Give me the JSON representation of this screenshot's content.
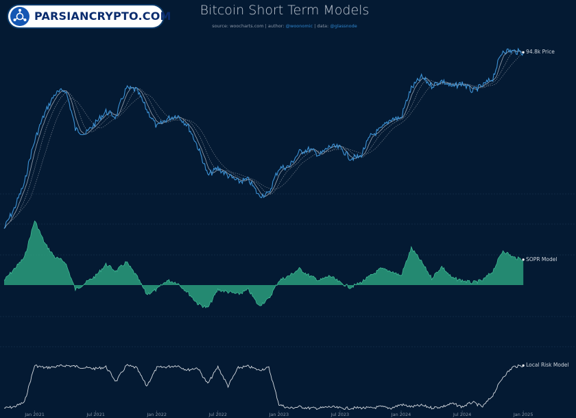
{
  "header": {
    "title": "Bitcoin Short Term Models",
    "source_prefix": "source: woocharts.com | author: ",
    "author": "@woonomic",
    "data_prefix": " | data: ",
    "data_source": "@glassnode"
  },
  "logo": {
    "text": "PARSIANCRYPTO.COM"
  },
  "chart_data": {
    "type": "line",
    "title": "Bitcoin Short Term Models",
    "x_ticks": [
      "Jan 2021",
      "Jul 2021",
      "Jan 2022",
      "Jul 2022",
      "Jan 2023",
      "Jul 2023",
      "Jan 2024",
      "Jul 2024",
      "Jan 2025"
    ],
    "x_range": [
      "2020-10",
      "2025-02"
    ],
    "grid": "horizontal",
    "legend": "inline-right",
    "series": [
      {
        "name": "Price",
        "label": "94.8k Price",
        "color": "#3d94d8",
        "panel": "top",
        "scale": "log",
        "x": [
          "2020-10",
          "2020-11",
          "2020-12",
          "2021-01",
          "2021-02",
          "2021-03",
          "2021-04",
          "2021-05",
          "2021-06",
          "2021-07",
          "2021-08",
          "2021-09",
          "2021-10",
          "2021-11",
          "2021-12",
          "2022-01",
          "2022-02",
          "2022-03",
          "2022-04",
          "2022-05",
          "2022-06",
          "2022-07",
          "2022-08",
          "2022-09",
          "2022-10",
          "2022-11",
          "2022-12",
          "2023-01",
          "2023-02",
          "2023-03",
          "2023-04",
          "2023-05",
          "2023-06",
          "2023-07",
          "2023-08",
          "2023-09",
          "2023-10",
          "2023-11",
          "2023-12",
          "2024-01",
          "2024-02",
          "2024-03",
          "2024-04",
          "2024-05",
          "2024-06",
          "2024-07",
          "2024-08",
          "2024-09",
          "2024-10",
          "2024-11",
          "2024-12",
          "2025-01"
        ],
        "values": [
          11,
          14,
          19,
          32,
          45,
          57,
          60,
          37,
          35,
          40,
          46,
          43,
          61,
          60,
          47,
          38,
          42,
          44,
          39,
          30,
          21,
          23,
          21,
          19.5,
          20,
          16.5,
          16.8,
          23,
          23.5,
          28,
          29,
          27,
          30,
          29.5,
          26,
          26.5,
          34,
          37,
          42,
          42.5,
          61,
          70,
          63,
          67,
          62,
          65,
          59,
          63,
          69,
          97,
          96,
          94.8
        ]
      },
      {
        "name": "SOPR Model",
        "label": "SOPR Model",
        "color": "#2a9d7c",
        "panel": "middle",
        "x": [
          "2020-10",
          "2020-11",
          "2020-12",
          "2021-01",
          "2021-02",
          "2021-03",
          "2021-04",
          "2021-05",
          "2021-06",
          "2021-07",
          "2021-08",
          "2021-09",
          "2021-10",
          "2021-11",
          "2021-12",
          "2022-01",
          "2022-02",
          "2022-03",
          "2022-04",
          "2022-05",
          "2022-06",
          "2022-07",
          "2022-08",
          "2022-09",
          "2022-10",
          "2022-11",
          "2022-12",
          "2023-01",
          "2023-02",
          "2023-03",
          "2023-04",
          "2023-05",
          "2023-06",
          "2023-07",
          "2023-08",
          "2023-09",
          "2023-10",
          "2023-11",
          "2023-12",
          "2024-01",
          "2024-02",
          "2024-03",
          "2024-04",
          "2024-05",
          "2024-06",
          "2024-07",
          "2024-08",
          "2024-09",
          "2024-10",
          "2024-11",
          "2024-12",
          "2025-01"
        ],
        "values": [
          0.1,
          0.35,
          0.6,
          1.4,
          0.9,
          0.6,
          0.5,
          -0.1,
          0.05,
          0.2,
          0.45,
          0.3,
          0.5,
          0.2,
          -0.2,
          -0.1,
          0.1,
          0.05,
          -0.15,
          -0.4,
          -0.5,
          -0.1,
          -0.15,
          -0.2,
          -0.1,
          -0.45,
          -0.3,
          0.1,
          0.2,
          0.35,
          0.2,
          0.1,
          0.2,
          0.05,
          -0.05,
          0.05,
          0.2,
          0.35,
          0.3,
          0.2,
          0.8,
          0.5,
          0.15,
          0.4,
          0.15,
          0.1,
          0.05,
          0.1,
          0.3,
          0.75,
          0.6,
          0.55
        ]
      },
      {
        "name": "Local Risk Model",
        "label": "Local Risk Model",
        "color": "#d8dde3",
        "panel": "bottom",
        "ylim": [
          0,
          1
        ],
        "x": [
          "2020-10",
          "2020-11",
          "2020-12",
          "2021-01",
          "2021-02",
          "2021-03",
          "2021-04",
          "2021-05",
          "2021-06",
          "2021-07",
          "2021-08",
          "2021-09",
          "2021-10",
          "2021-11",
          "2021-12",
          "2022-01",
          "2022-02",
          "2022-03",
          "2022-04",
          "2022-05",
          "2022-06",
          "2022-07",
          "2022-08",
          "2022-09",
          "2022-10",
          "2022-11",
          "2022-12",
          "2023-01",
          "2023-02",
          "2023-03",
          "2023-04",
          "2023-05",
          "2023-06",
          "2023-07",
          "2023-08",
          "2023-09",
          "2023-10",
          "2023-11",
          "2023-12",
          "2024-01",
          "2024-02",
          "2024-03",
          "2024-04",
          "2024-05",
          "2024-06",
          "2024-07",
          "2024-08",
          "2024-09",
          "2024-10",
          "2024-11",
          "2024-12",
          "2025-01"
        ],
        "values": [
          0.02,
          0.05,
          0.15,
          0.95,
          0.9,
          0.92,
          0.95,
          0.93,
          0.9,
          0.88,
          0.92,
          0.6,
          0.95,
          0.9,
          0.5,
          0.9,
          0.92,
          0.95,
          0.85,
          0.9,
          0.55,
          0.92,
          0.5,
          0.9,
          0.93,
          0.85,
          0.9,
          0.1,
          0.02,
          0.05,
          0.02,
          0.02,
          0.05,
          0.02,
          0.02,
          0.03,
          0.02,
          0.05,
          0.02,
          0.1,
          0.05,
          0.08,
          0.03,
          0.05,
          0.12,
          0.05,
          0.15,
          0.05,
          0.3,
          0.7,
          0.92,
          0.95
        ]
      }
    ]
  }
}
